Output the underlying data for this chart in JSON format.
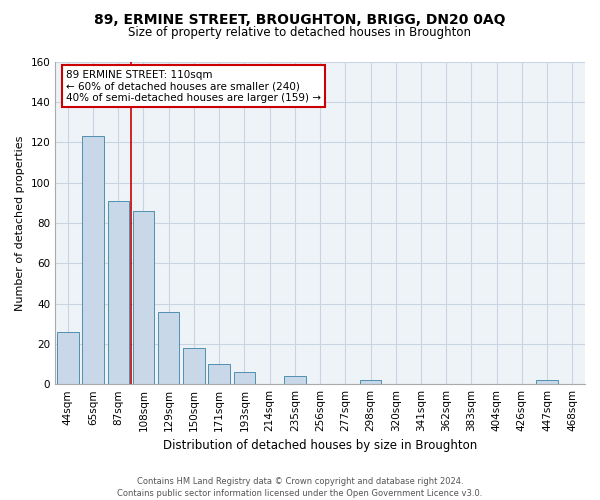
{
  "title": "89, ERMINE STREET, BROUGHTON, BRIGG, DN20 0AQ",
  "subtitle": "Size of property relative to detached houses in Broughton",
  "xlabel": "Distribution of detached houses by size in Broughton",
  "ylabel": "Number of detached properties",
  "bar_color": "#c8d8e8",
  "bar_edge_color": "#5090b0",
  "categories": [
    "44sqm",
    "65sqm",
    "87sqm",
    "108sqm",
    "129sqm",
    "150sqm",
    "171sqm",
    "193sqm",
    "214sqm",
    "235sqm",
    "256sqm",
    "277sqm",
    "298sqm",
    "320sqm",
    "341sqm",
    "362sqm",
    "383sqm",
    "404sqm",
    "426sqm",
    "447sqm",
    "468sqm"
  ],
  "values": [
    26,
    123,
    91,
    86,
    36,
    18,
    10,
    6,
    0,
    4,
    0,
    0,
    2,
    0,
    0,
    0,
    0,
    0,
    0,
    2,
    0
  ],
  "ylim": [
    0,
    160
  ],
  "yticks": [
    0,
    20,
    40,
    60,
    80,
    100,
    120,
    140,
    160
  ],
  "annotation_title": "89 ERMINE STREET: 110sqm",
  "annotation_line1": "← 60% of detached houses are smaller (240)",
  "annotation_line2": "40% of semi-detached houses are larger (159) →",
  "annotation_box_color": "#ffffff",
  "annotation_box_edge_color": "#cc0000",
  "property_bar_index": 3,
  "vline_color": "#cc0000",
  "footer_line1": "Contains HM Land Registry data © Crown copyright and database right 2024.",
  "footer_line2": "Contains public sector information licensed under the Open Government Licence v3.0.",
  "background_color": "#ffffff",
  "grid_color": "#c8d4e0",
  "title_fontsize": 10,
  "subtitle_fontsize": 8.5,
  "ylabel_fontsize": 8,
  "xlabel_fontsize": 8.5,
  "tick_fontsize": 7.5,
  "annotation_fontsize": 7.5,
  "footer_fontsize": 6.0
}
